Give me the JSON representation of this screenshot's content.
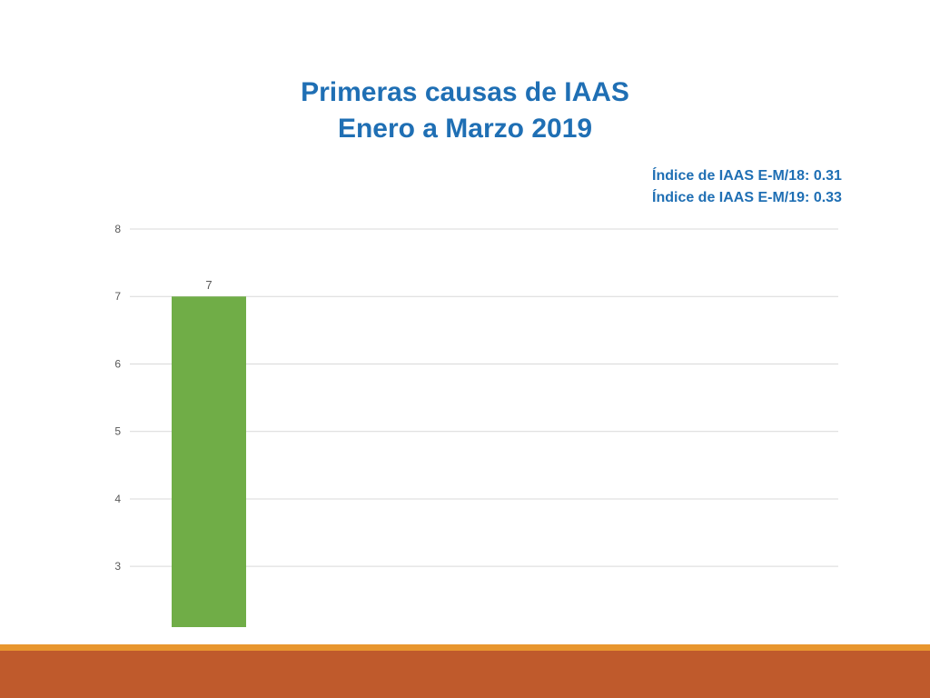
{
  "slide": {
    "title_line1": "Primeras causas de IAAS",
    "title_line2": "Enero a Marzo 2019",
    "notes": [
      "Índice de IAAS E-M/18: 0.31",
      "Índice de IAAS E-M/19: 0.33"
    ]
  },
  "colors": {
    "title": "#1f6fb4",
    "bar": "#70ad47",
    "gridline": "#d9d9d9",
    "axis_text": "#595959",
    "footer_orange": "#e8962e",
    "footer_band": "#bf5a2c"
  },
  "chart_data": {
    "type": "bar",
    "categories": [
      ""
    ],
    "values": [
      7
    ],
    "data_labels": [
      "7"
    ],
    "ylim": [
      2.1,
      8
    ],
    "yticks": [
      3,
      4,
      5,
      6,
      7,
      8
    ],
    "grid": true,
    "legend": "none",
    "title": "",
    "xlabel": "",
    "ylabel": ""
  }
}
